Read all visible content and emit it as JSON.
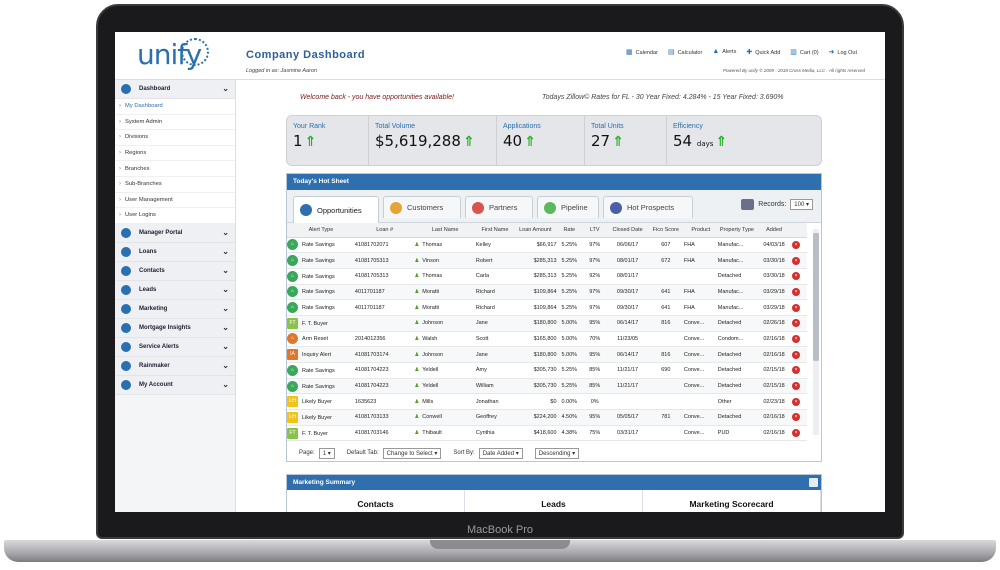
{
  "device": {
    "label": "MacBook Pro"
  },
  "header": {
    "logo_text": "unify",
    "title": "Company Dashboard",
    "logged_in": "Logged in as: Jasmine Aaron",
    "nav": [
      "Calendar",
      "Calculator",
      "Alerts",
      "Quick Add",
      "Cart (0)",
      "Log Out"
    ],
    "powered": "Powered By",
    "copyright": "© 2009 - 2018 Cross Media, LLC - All rights reserved"
  },
  "sidebar": {
    "dashboard_label": "Dashboard",
    "dashboard_items": [
      "My Dashboard",
      "System Admin",
      "Divisions",
      "Regions",
      "Branches",
      "Sub-Branches",
      "User Management",
      "User Logins"
    ],
    "sections": [
      "Manager Portal",
      "Loans",
      "Contacts",
      "Leads",
      "Marketing",
      "Mortgage Insights",
      "Service Alerts",
      "Rainmaker",
      "My Account"
    ]
  },
  "welcome": "Welcome back - you have opportunities available!",
  "rates": "Todays Zillow© Rates for FL - 30 Year Fixed: 4.284% - 15 Year Fixed: 3.690%",
  "stats": [
    {
      "label": "Your Rank",
      "value": "1",
      "unit": ""
    },
    {
      "label": "Total Volume",
      "value": "$5,619,288",
      "unit": ""
    },
    {
      "label": "Applications",
      "value": "40",
      "unit": ""
    },
    {
      "label": "Total Units",
      "value": "27",
      "unit": ""
    },
    {
      "label": "Efficiency",
      "value": "54",
      "unit": "days"
    }
  ],
  "hotsheet": {
    "title": "Today's Hot Sheet",
    "tabs": [
      "Opportunities",
      "Customers",
      "Partners",
      "Pipeline",
      "Hot Prospects"
    ],
    "records_label": "Records:",
    "records_value": "100",
    "columns": [
      "Alert Type",
      "Loan #",
      "Last Name",
      "First Name",
      "Loan Amount",
      "Rate",
      "LTV",
      "Closed Date",
      "Fico Score",
      "Product",
      "Property Type",
      "Added"
    ],
    "rows": [
      {
        "badge": "",
        "alert": "Rate Savings",
        "loan": "41081702071",
        "last": "Thomas",
        "first": "Kelley",
        "amount": "$66,917",
        "rate": "5.25%",
        "ltv": "97%",
        "closed": "06/06/17",
        "fico": "607",
        "product": "FHA",
        "ptype": "Manufac...",
        "added": "04/03/18"
      },
      {
        "badge": "",
        "alert": "Rate Savings",
        "loan": "41081705313",
        "last": "Vinson",
        "first": "Robert",
        "amount": "$285,313",
        "rate": "5.25%",
        "ltv": "97%",
        "closed": "08/01/17",
        "fico": "672",
        "product": "FHA",
        "ptype": "Manufac...",
        "added": "03/30/18"
      },
      {
        "badge": "",
        "alert": "Rate Savings",
        "loan": "41081705313",
        "last": "Thomas",
        "first": "Carla",
        "amount": "$285,313",
        "rate": "5.25%",
        "ltv": "92%",
        "closed": "08/01/17",
        "fico": "",
        "product": "",
        "ptype": "Detached",
        "added": "03/30/18"
      },
      {
        "badge": "",
        "alert": "Rate Savings",
        "loan": "4011701187",
        "last": "Moratti",
        "first": "Richard",
        "amount": "$109,864",
        "rate": "5.25%",
        "ltv": "97%",
        "closed": "09/30/17",
        "fico": "641",
        "product": "FHA",
        "ptype": "Manufac...",
        "added": "03/29/18"
      },
      {
        "badge": "",
        "alert": "Rate Savings",
        "loan": "4011701187",
        "last": "Moratti",
        "first": "Richard",
        "amount": "$109,864",
        "rate": "5.25%",
        "ltv": "97%",
        "closed": "09/30/17",
        "fico": "641",
        "product": "FHA",
        "ptype": "Manufac...",
        "added": "03/29/18"
      },
      {
        "badge": "FT",
        "alert": "F. T. Buyer",
        "loan": "",
        "last": "Johnson",
        "first": "Jane",
        "amount": "$180,800",
        "rate": "5.00%",
        "ltv": "95%",
        "closed": "06/14/17",
        "fico": "816",
        "product": "Conve...",
        "ptype": "Detached",
        "added": "02/26/18"
      },
      {
        "badge": "",
        "alert": "Arm Reset",
        "loan": "2014012356",
        "last": "Walsh",
        "first": "Scott",
        "amount": "$165,800",
        "rate": "5.00%",
        "ltv": "70%",
        "closed": "11/23/05",
        "fico": "",
        "product": "Conve...",
        "ptype": "Condom...",
        "added": "02/16/18"
      },
      {
        "badge": "IA",
        "alert": "Inquiry Alert",
        "loan": "41081703174",
        "last": "Johnson",
        "first": "Jane",
        "amount": "$180,800",
        "rate": "5.00%",
        "ltv": "95%",
        "closed": "06/14/17",
        "fico": "816",
        "product": "Conve...",
        "ptype": "Detached",
        "added": "02/16/18"
      },
      {
        "badge": "",
        "alert": "Rate Savings",
        "loan": "41081704223",
        "last": "Yeldell",
        "first": "Amy",
        "amount": "$305,730",
        "rate": "5.25%",
        "ltv": "85%",
        "closed": "11/21/17",
        "fico": "690",
        "product": "Conve...",
        "ptype": "Detached",
        "added": "02/15/18"
      },
      {
        "badge": "",
        "alert": "Rate Savings",
        "loan": "41081704223",
        "last": "Yeldell",
        "first": "William",
        "amount": "$305,730",
        "rate": "5.25%",
        "ltv": "85%",
        "closed": "11/21/17",
        "fico": "",
        "product": "Conve...",
        "ptype": "Detached",
        "added": "02/15/18"
      },
      {
        "badge": "LH",
        "alert": "Likely Buyer",
        "loan": "1635623",
        "last": "Mills",
        "first": "Jonathan",
        "amount": "$0",
        "rate": "0.00%",
        "ltv": "0%",
        "closed": "",
        "fico": "",
        "product": "",
        "ptype": "Other",
        "added": "02/23/18"
      },
      {
        "badge": "LH",
        "alert": "Likely Buyer",
        "loan": "41081703133",
        "last": "Conwell",
        "first": "Geoffrey",
        "amount": "$224,200",
        "rate": "4.50%",
        "ltv": "95%",
        "closed": "05/05/17",
        "fico": "781",
        "product": "Conve...",
        "ptype": "Detached",
        "added": "02/16/18"
      },
      {
        "badge": "FT",
        "alert": "F. T. Buyer",
        "loan": "41081703146",
        "last": "Thibault",
        "first": "Cynthia",
        "amount": "$418,600",
        "rate": "4.38%",
        "ltv": "75%",
        "closed": "03/31/17",
        "fico": "",
        "product": "Conve...",
        "ptype": "PUD",
        "added": "02/16/18"
      }
    ],
    "pager": {
      "page_label": "Page:",
      "page_value": "1",
      "default_tab_label": "Default Tab:",
      "default_tab_value": "Change to Select",
      "sort_label": "Sort By:",
      "sort_value": "Date Added",
      "order_value": "Descending"
    }
  },
  "marketing": {
    "title": "Marketing Summary",
    "columns": [
      "Contacts",
      "Leads",
      "Marketing Scorecard"
    ]
  },
  "colors": {
    "accent": "#2f6fae",
    "up_arrow": "#22b022",
    "delete": "#d32f2f",
    "rate_savings": "#3aa85a",
    "arm_reset": "#e0762b",
    "inquiry": "#e0762b",
    "first_time": "#8bc34a",
    "likely": "#f0c419"
  }
}
